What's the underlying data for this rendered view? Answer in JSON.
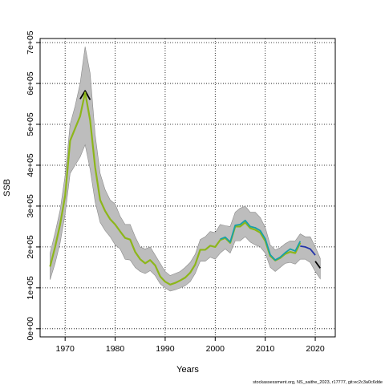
{
  "chart_data": {
    "type": "line",
    "xlabel": "Years",
    "ylabel": "SSB",
    "xlim": [
      1965,
      2024
    ],
    "ylim": [
      -20000,
      710000
    ],
    "x_ticks": [
      1970,
      1980,
      1990,
      2000,
      2010,
      2020
    ],
    "y_ticks": [
      0,
      100000,
      200000,
      300000,
      400000,
      500000,
      600000,
      700000
    ],
    "y_tick_labels": [
      "0e+00",
      "1e+05",
      "2e+05",
      "3e+05",
      "4e+05",
      "5e+05",
      "6e+05",
      "7e+05"
    ],
    "grid": true,
    "confidence_band": {
      "x": [
        1967,
        1968,
        1969,
        1970,
        1971,
        1972,
        1973,
        1974,
        1975,
        1976,
        1977,
        1978,
        1979,
        1980,
        1981,
        1982,
        1983,
        1984,
        1985,
        1986,
        1987,
        1988,
        1989,
        1990,
        1991,
        1992,
        1993,
        1994,
        1995,
        1996,
        1997,
        1998,
        1999,
        2000,
        2001,
        2002,
        2003,
        2004,
        2005,
        2006,
        2007,
        2008,
        2009,
        2010,
        2011,
        2012,
        2013,
        2014,
        2015,
        2016,
        2017,
        2018,
        2019,
        2020,
        2021
      ],
      "lower": [
        120000,
        160000,
        210000,
        280000,
        380000,
        400000,
        420000,
        450000,
        390000,
        310000,
        260000,
        240000,
        225000,
        205000,
        195000,
        170000,
        168000,
        150000,
        140000,
        135000,
        142000,
        130000,
        110000,
        100000,
        92000,
        95000,
        100000,
        105000,
        115000,
        135000,
        165000,
        165000,
        175000,
        170000,
        185000,
        195000,
        185000,
        215000,
        215000,
        225000,
        212000,
        205000,
        200000,
        185000,
        150000,
        140000,
        150000,
        160000,
        162000,
        158000,
        170000,
        170000,
        162000,
        140000,
        122000
      ],
      "upper": [
        185000,
        235000,
        290000,
        375000,
        500000,
        545000,
        600000,
        690000,
        625000,
        475000,
        380000,
        340000,
        315000,
        305000,
        275000,
        255000,
        255000,
        225000,
        200000,
        195000,
        200000,
        180000,
        160000,
        140000,
        130000,
        135000,
        140000,
        150000,
        162000,
        182000,
        218000,
        225000,
        238000,
        235000,
        255000,
        252000,
        250000,
        285000,
        295000,
        300000,
        285000,
        285000,
        272000,
        248000,
        205000,
        193000,
        198000,
        208000,
        215000,
        215000,
        232000,
        225000,
        225000,
        200000,
        172000
      ]
    },
    "series": [
      {
        "color": "#8db61a",
        "x": [
          1967,
          1968,
          1969,
          1970,
          1971,
          1972,
          1973,
          1974,
          1975,
          1976,
          1977,
          1978,
          1979,
          1980,
          1981,
          1982,
          1983,
          1984,
          1985,
          1986,
          1987,
          1988,
          1989,
          1990,
          1991,
          1992,
          1993,
          1994,
          1995,
          1996,
          1997,
          1998,
          1999,
          2000,
          2001,
          2002,
          2003,
          2004,
          2005,
          2006,
          2007,
          2008,
          2009,
          2010,
          2011,
          2012,
          2013,
          2014,
          2015,
          2016,
          2017
        ],
        "values": [
          152000,
          200000,
          255000,
          325000,
          460000,
          490000,
          520000,
          578000,
          510000,
          395000,
          315000,
          288000,
          268000,
          255000,
          238000,
          222000,
          218000,
          188000,
          170000,
          160000,
          168000,
          155000,
          128000,
          115000,
          108000,
          112000,
          118000,
          125000,
          137000,
          157000,
          193000,
          193000,
          203000,
          200000,
          217000,
          222000,
          210000,
          250000,
          250000,
          260000,
          246000,
          242000,
          235000,
          215000,
          178000,
          167000,
          173000,
          183000,
          188000,
          185000,
          210000
        ]
      },
      {
        "color": "#17a0a8",
        "x": [
          2001,
          2002,
          2003,
          2004,
          2005,
          2006,
          2007,
          2008,
          2009,
          2010,
          2011,
          2012,
          2013,
          2014,
          2015,
          2016,
          2017
        ],
        "values": [
          219000,
          224000,
          212000,
          253000,
          255000,
          265000,
          250000,
          247000,
          240000,
          220000,
          181000,
          168000,
          175000,
          186000,
          195000,
          190000,
          214000
        ]
      },
      {
        "color": "#2233aa",
        "x": [
          2017,
          2018,
          2019,
          2020
        ],
        "values": [
          202000,
          200000,
          195000,
          180000
        ]
      },
      {
        "color": "#000000",
        "x": [
          1973,
          1974,
          1975,
          2020,
          2021
        ],
        "values": [
          562000,
          582000,
          560000,
          165000,
          148000
        ]
      }
    ],
    "footnote": "stockassessment.org, NS_saithe_2023, r17777, git:ec2c3a0c6dde"
  }
}
